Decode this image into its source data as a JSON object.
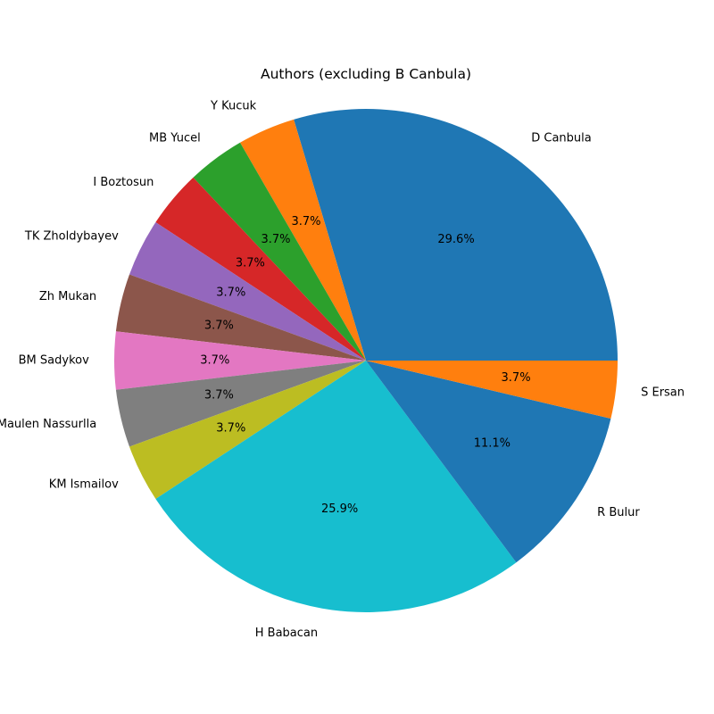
{
  "chart_data": {
    "type": "pie",
    "title": "Authors (excluding B Canbula)",
    "start_angle_deg": 0,
    "direction": "counterclockwise",
    "slices": [
      {
        "label": "D Canbula",
        "value": 8,
        "pct_label": "29.6%",
        "color": "#1f77b4"
      },
      {
        "label": "Y Kucuk",
        "value": 1,
        "pct_label": "3.7%",
        "color": "#ff7f0e"
      },
      {
        "label": "MB Yucel",
        "value": 1,
        "pct_label": "3.7%",
        "color": "#2ca02c"
      },
      {
        "label": "I Boztosun",
        "value": 1,
        "pct_label": "3.7%",
        "color": "#d62728"
      },
      {
        "label": "TK Zholdybayev",
        "value": 1,
        "pct_label": "3.7%",
        "color": "#9467bd"
      },
      {
        "label": "Zh Mukan",
        "value": 1,
        "pct_label": "3.7%",
        "color": "#8c564b"
      },
      {
        "label": "BM Sadykov",
        "value": 1,
        "pct_label": "3.7%",
        "color": "#e377c2"
      },
      {
        "label": "Maulen Nassurlla",
        "value": 1,
        "pct_label": "3.7%",
        "color": "#7f7f7f"
      },
      {
        "label": "KM Ismailov",
        "value": 1,
        "pct_label": "3.7%",
        "color": "#bcbd22"
      },
      {
        "label": "H Babacan",
        "value": 7,
        "pct_label": "25.9%",
        "color": "#17becf"
      },
      {
        "label": "R Bulur",
        "value": 3,
        "pct_label": "11.1%",
        "color": "#1f77b4"
      },
      {
        "label": "S Ersan",
        "value": 1,
        "pct_label": "3.7%",
        "color": "#ff7f0e"
      }
    ]
  }
}
